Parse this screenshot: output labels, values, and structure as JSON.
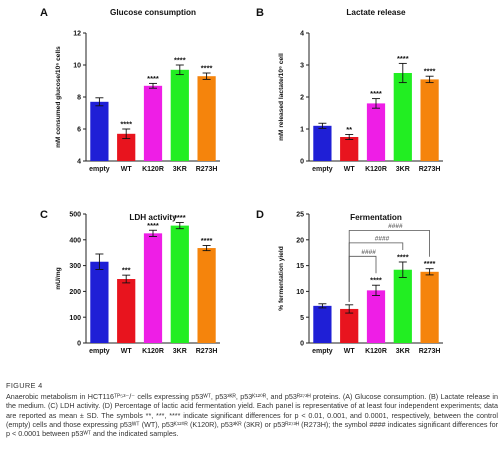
{
  "chart_data": [
    {
      "type": "bar",
      "panel": "A",
      "title": "Glucose consumption",
      "ylabel": "mM consumed glucose/10⁶ cells",
      "xlabel": "",
      "ylim": [
        4,
        12
      ],
      "yticks": [
        4,
        6,
        8,
        10,
        12
      ],
      "categories": [
        "empty",
        "WT",
        "K120R",
        "3KR",
        "R273H"
      ],
      "values": [
        7.7,
        5.7,
        8.7,
        9.7,
        9.3
      ],
      "errors": [
        0.25,
        0.3,
        0.15,
        0.3,
        0.2
      ],
      "significance": [
        "",
        "****",
        "****",
        "****",
        "****"
      ],
      "grid": false
    },
    {
      "type": "bar",
      "panel": "B",
      "title": "Lactate release",
      "ylabel": "mM released lactate/10⁶ cell",
      "xlabel": "",
      "ylim": [
        0,
        4
      ],
      "yticks": [
        0,
        1,
        2,
        3,
        4
      ],
      "categories": [
        "empty",
        "WT",
        "K120R",
        "3KR",
        "R273H"
      ],
      "values": [
        1.1,
        0.75,
        1.8,
        2.75,
        2.55
      ],
      "errors": [
        0.08,
        0.08,
        0.15,
        0.3,
        0.1
      ],
      "significance": [
        "",
        "**",
        "****",
        "****",
        "****"
      ],
      "grid": false
    },
    {
      "type": "bar",
      "panel": "C",
      "title": "LDH activity",
      "ylabel": "mU/mg",
      "xlabel": "",
      "ylim": [
        0,
        500
      ],
      "yticks": [
        0,
        100,
        200,
        300,
        400,
        500
      ],
      "categories": [
        "empty",
        "WT",
        "K120R",
        "3KR",
        "R273H"
      ],
      "values": [
        315,
        248,
        425,
        455,
        368
      ],
      "errors": [
        30,
        15,
        12,
        12,
        10
      ],
      "significance": [
        "",
        "***",
        "****",
        "****",
        "****"
      ],
      "grid": false
    },
    {
      "type": "bar",
      "panel": "D",
      "title": "Fermentation",
      "ylabel": "% fermentation yield",
      "xlabel": "",
      "ylim": [
        0,
        25
      ],
      "yticks": [
        0,
        5,
        10,
        15,
        20,
        25
      ],
      "categories": [
        "empty",
        "WT",
        "K120R",
        "3KR",
        "R273H"
      ],
      "values": [
        7.2,
        6.6,
        10.2,
        14.2,
        13.8
      ],
      "errors": [
        0.4,
        0.8,
        1.0,
        1.5,
        0.6
      ],
      "significance": [
        "",
        "",
        "****",
        "****",
        "****"
      ],
      "brackets": [
        {
          "from": 1,
          "to": 4,
          "label": "####"
        },
        {
          "from": 1,
          "to": 3,
          "label": "####"
        },
        {
          "from": 1,
          "to": 2,
          "label": "####"
        }
      ],
      "grid": false
    }
  ],
  "colors": {
    "empty": "#1f1fd6",
    "WT": "#e8141e",
    "K120R": "#ee1ee6",
    "3KR": "#22ee22",
    "R273H": "#f5840c",
    "axis": "#222222"
  },
  "caption": {
    "figure_label": "FIGURE 4",
    "text": "Anaerobic metabolism in HCT116ᵀᴾ⁵³⁻/⁻ cells expressing p53ᵂᵀ, p53³ᴷᴿ, p53ᴷ¹²⁰ᴿ, and p53ᴿ²⁷³ᴴ proteins. (A) Glucose consumption. (B) Lactate release in the medium. (C) LDH activity. (D) Percentage of lactic acid fermentation yield. Each panel is representative of at least four independent experiments; data are reported as mean ± SD. The symbols **, ***, **** indicate significant differences for p < 0.01, 0.001, and 0.0001, respectively, between the control (empty) cells and those expressing p53ᵂᵀ (WT), p53ᴷ¹²⁰ᴿ (K120R), p53³ᴷᴿ (3KR) or p53ᴿ²⁷³ᴴ (R273H); the symbol #### indicates significant differences for p < 0.0001 between p53ᵂᵀ and the indicated samples."
  }
}
